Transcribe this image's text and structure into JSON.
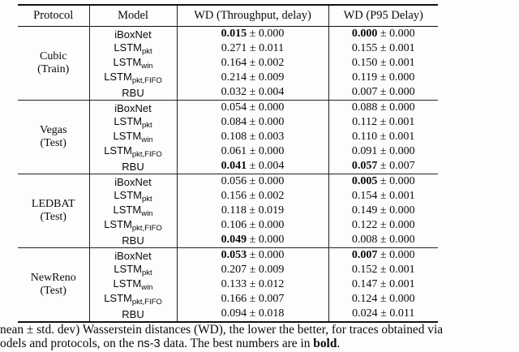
{
  "table": {
    "headers": [
      "Protocol",
      "Model",
      "WD (Throughput, delay)",
      "WD (P95 Delay)"
    ],
    "plus_minus": "±",
    "groups": [
      {
        "protocol_line1": "Cubic",
        "protocol_line2": "(Train)",
        "rows": [
          {
            "model_base": "iBoxNet",
            "model_sub": "",
            "wd1_val": "0.015",
            "wd1_bold": true,
            "wd1_err": "0.000",
            "wd2_val": "0.000",
            "wd2_bold": true,
            "wd2_err": "0.000"
          },
          {
            "model_base": "LSTM",
            "model_sub": "pkt",
            "wd1_val": "0.271",
            "wd1_bold": false,
            "wd1_err": "0.011",
            "wd2_val": "0.155",
            "wd2_bold": false,
            "wd2_err": "0.001"
          },
          {
            "model_base": "LSTM",
            "model_sub": "win",
            "wd1_val": "0.164",
            "wd1_bold": false,
            "wd1_err": "0.002",
            "wd2_val": "0.150",
            "wd2_bold": false,
            "wd2_err": "0.001"
          },
          {
            "model_base": "LSTM",
            "model_sub": "pkt,FIFO",
            "wd1_val": "0.214",
            "wd1_bold": false,
            "wd1_err": "0.009",
            "wd2_val": "0.119",
            "wd2_bold": false,
            "wd2_err": "0.000"
          },
          {
            "model_base": "RBU",
            "model_sub": "",
            "wd1_val": "0.032",
            "wd1_bold": false,
            "wd1_err": "0.004",
            "wd2_val": "0.007",
            "wd2_bold": false,
            "wd2_err": "0.000"
          }
        ]
      },
      {
        "protocol_line1": "Vegas",
        "protocol_line2": "(Test)",
        "rows": [
          {
            "model_base": "iBoxNet",
            "model_sub": "",
            "wd1_val": "0.054",
            "wd1_bold": false,
            "wd1_err": "0.000",
            "wd2_val": "0.088",
            "wd2_bold": false,
            "wd2_err": "0.000"
          },
          {
            "model_base": "LSTM",
            "model_sub": "pkt",
            "wd1_val": "0.084",
            "wd1_bold": false,
            "wd1_err": "0.000",
            "wd2_val": "0.112",
            "wd2_bold": false,
            "wd2_err": "0.001"
          },
          {
            "model_base": "LSTM",
            "model_sub": "win",
            "wd1_val": "0.108",
            "wd1_bold": false,
            "wd1_err": "0.003",
            "wd2_val": "0.110",
            "wd2_bold": false,
            "wd2_err": "0.001"
          },
          {
            "model_base": "LSTM",
            "model_sub": "pkt,FIFO",
            "wd1_val": "0.061",
            "wd1_bold": false,
            "wd1_err": "0.000",
            "wd2_val": "0.091",
            "wd2_bold": false,
            "wd2_err": "0.000"
          },
          {
            "model_base": "RBU",
            "model_sub": "",
            "wd1_val": "0.041",
            "wd1_bold": true,
            "wd1_err": "0.004",
            "wd2_val": "0.057",
            "wd2_bold": true,
            "wd2_err": "0.007"
          }
        ]
      },
      {
        "protocol_line1": "LEDBAT",
        "protocol_line2": "(Test)",
        "rows": [
          {
            "model_base": "iBoxNet",
            "model_sub": "",
            "wd1_val": "0.056",
            "wd1_bold": false,
            "wd1_err": "0.000",
            "wd2_val": "0.005",
            "wd2_bold": true,
            "wd2_err": "0.000"
          },
          {
            "model_base": "LSTM",
            "model_sub": "pkt",
            "wd1_val": "0.156",
            "wd1_bold": false,
            "wd1_err": "0.002",
            "wd2_val": "0.154",
            "wd2_bold": false,
            "wd2_err": "0.001"
          },
          {
            "model_base": "LSTM",
            "model_sub": "win",
            "wd1_val": "0.118",
            "wd1_bold": false,
            "wd1_err": "0.019",
            "wd2_val": "0.149",
            "wd2_bold": false,
            "wd2_err": "0.000"
          },
          {
            "model_base": "LSTM",
            "model_sub": "pkt,FIFO",
            "wd1_val": "0.106",
            "wd1_bold": false,
            "wd1_err": "0.000",
            "wd2_val": "0.122",
            "wd2_bold": false,
            "wd2_err": "0.000"
          },
          {
            "model_base": "RBU",
            "model_sub": "",
            "wd1_val": "0.049",
            "wd1_bold": true,
            "wd1_err": "0.000",
            "wd2_val": "0.008",
            "wd2_bold": false,
            "wd2_err": "0.000"
          }
        ]
      },
      {
        "protocol_line1": "NewReno",
        "protocol_line2": "(Test)",
        "rows": [
          {
            "model_base": "iBoxNet",
            "model_sub": "",
            "wd1_val": "0.053",
            "wd1_bold": true,
            "wd1_err": "0.000",
            "wd2_val": "0.007",
            "wd2_bold": true,
            "wd2_err": "0.000"
          },
          {
            "model_base": "LSTM",
            "model_sub": "pkt",
            "wd1_val": "0.207",
            "wd1_bold": false,
            "wd1_err": "0.009",
            "wd2_val": "0.152",
            "wd2_bold": false,
            "wd2_err": "0.001"
          },
          {
            "model_base": "LSTM",
            "model_sub": "win",
            "wd1_val": "0.133",
            "wd1_bold": false,
            "wd1_err": "0.012",
            "wd2_val": "0.147",
            "wd2_bold": false,
            "wd2_err": "0.001"
          },
          {
            "model_base": "LSTM",
            "model_sub": "pkt,FIFO",
            "wd1_val": "0.166",
            "wd1_bold": false,
            "wd1_err": "0.007",
            "wd2_val": "0.124",
            "wd2_bold": false,
            "wd2_err": "0.000"
          },
          {
            "model_base": "RBU",
            "model_sub": "",
            "wd1_val": "0.094",
            "wd1_bold": false,
            "wd1_err": "0.018",
            "wd2_val": "0.024",
            "wd2_bold": false,
            "wd2_err": "0.011"
          }
        ]
      }
    ]
  },
  "caption": {
    "line1": "nean ± std. dev) Wasserstein distances (WD), the lower the better, for traces obtained via",
    "line2": {
      "pre": "odels and protocols, on the ",
      "code": "ns-3",
      "mid": " data. The best numbers are in ",
      "bold": "bold",
      "post": "."
    }
  }
}
